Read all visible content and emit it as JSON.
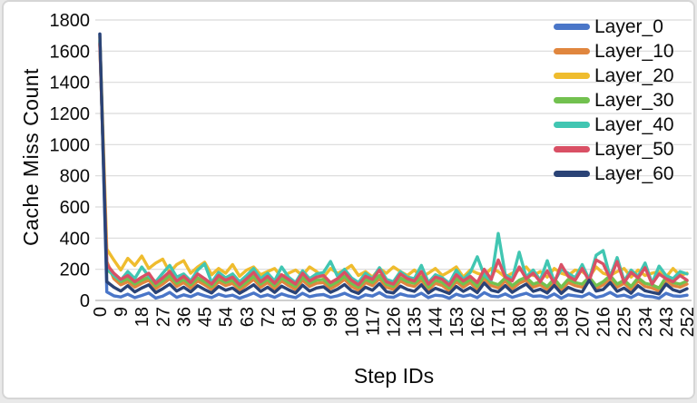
{
  "card": {
    "background": "#ffffff",
    "border_color": "#d6d6d6"
  },
  "colors": {
    "gridline": "#d9d9d9",
    "axis_line": "#bfbfbf",
    "tick_text": "#0a0a0a"
  },
  "chart_data": {
    "type": "line",
    "title": "",
    "xlabel": "Step IDs",
    "ylabel": "Cache Miss Count",
    "xlim": [
      0,
      252
    ],
    "ylim": [
      0,
      1800
    ],
    "grid": "horizontal-only",
    "legend_position": "top-right",
    "x_ticks": [
      0,
      9,
      18,
      27,
      36,
      45,
      54,
      63,
      72,
      81,
      90,
      99,
      108,
      117,
      126,
      135,
      144,
      153,
      162,
      171,
      180,
      189,
      198,
      207,
      216,
      225,
      234,
      243,
      252
    ],
    "y_ticks": [
      0,
      200,
      400,
      600,
      800,
      1000,
      1200,
      1400,
      1600,
      1800
    ],
    "sample_step": 3,
    "series": [
      {
        "name": "Layer_0",
        "color": "#4a76c8",
        "values": [
          1710,
          55,
          30,
          22,
          40,
          18,
          32,
          48,
          15,
          28,
          52,
          20,
          36,
          24,
          44,
          30,
          18,
          40,
          26,
          34,
          14,
          30,
          48,
          24,
          36,
          20,
          42,
          28,
          18,
          46,
          24,
          34,
          38,
          20,
          30,
          46,
          26,
          14,
          36,
          28,
          50,
          24,
          20,
          42,
          30,
          26,
          46,
          18,
          34,
          30,
          14,
          40,
          26,
          36,
          18,
          50,
          28,
          24,
          42,
          20,
          34,
          46,
          26,
          30,
          18,
          42,
          14,
          36,
          30,
          24,
          46,
          20,
          30,
          52,
          26,
          34,
          18,
          42,
          28,
          24,
          14,
          46,
          30,
          26,
          34
        ]
      },
      {
        "name": "Layer_10",
        "color": "#e0863e",
        "values": [
          1640,
          250,
          140,
          100,
          120,
          85,
          110,
          130,
          75,
          105,
          140,
          90,
          115,
          80,
          125,
          100,
          70,
          120,
          95,
          110,
          65,
          100,
          135,
          85,
          115,
          75,
          125,
          95,
          70,
          130,
          90,
          110,
          115,
          75,
          100,
          135,
          90,
          65,
          115,
          95,
          140,
          85,
          70,
          125,
          100,
          90,
          130,
          65,
          110,
          95,
          60,
          120,
          85,
          115,
          70,
          140,
          95,
          80,
          125,
          75,
          110,
          130,
          85,
          100,
          70,
          120,
          65,
          115,
          95,
          85,
          130,
          75,
          100,
          140,
          85,
          110,
          70,
          125,
          90,
          80,
          60,
          130,
          95,
          85,
          105
        ]
      },
      {
        "name": "Layer_20",
        "color": "#efbc2e",
        "values": [
          1690,
          330,
          260,
          195,
          270,
          225,
          285,
          205,
          240,
          265,
          180,
          230,
          255,
          175,
          215,
          245,
          165,
          205,
          175,
          230,
          155,
          195,
          215,
          165,
          185,
          205,
          150,
          175,
          195,
          160,
          215,
          185,
          150,
          205,
          175,
          195,
          225,
          160,
          185,
          150,
          205,
          175,
          215,
          185,
          160,
          195,
          150,
          175,
          205,
          160,
          185,
          215,
          150,
          195,
          175,
          160,
          205,
          185,
          150,
          175,
          195,
          215,
          160,
          185,
          150,
          205,
          175,
          160,
          195,
          185,
          150,
          215,
          175,
          160,
          185,
          205,
          150,
          195,
          160,
          175,
          185,
          150,
          205,
          160,
          175
        ]
      },
      {
        "name": "Layer_30",
        "color": "#72c14f",
        "values": [
          1660,
          200,
          160,
          120,
          140,
          105,
          130,
          150,
          95,
          125,
          160,
          110,
          135,
          100,
          145,
          120,
          90,
          140,
          115,
          130,
          85,
          120,
          155,
          105,
          135,
          95,
          145,
          115,
          90,
          150,
          110,
          130,
          135,
          95,
          120,
          155,
          110,
          85,
          135,
          115,
          160,
          105,
          90,
          145,
          120,
          110,
          150,
          85,
          130,
          115,
          80,
          140,
          105,
          135,
          90,
          160,
          115,
          100,
          145,
          95,
          130,
          150,
          105,
          120,
          90,
          140,
          85,
          135,
          115,
          105,
          150,
          95,
          120,
          160,
          105,
          130,
          90,
          145,
          110,
          100,
          80,
          150,
          115,
          105,
          125
        ]
      },
      {
        "name": "Layer_40",
        "color": "#41c6b2",
        "values": [
          1670,
          210,
          160,
          130,
          185,
          140,
          215,
          155,
          120,
          175,
          225,
          150,
          170,
          125,
          195,
          235,
          115,
          180,
          145,
          170,
          120,
          160,
          205,
          140,
          175,
          125,
          215,
          150,
          115,
          190,
          140,
          170,
          180,
          250,
          155,
          200,
          145,
          115,
          175,
          140,
          210,
          135,
          120,
          185,
          150,
          140,
          225,
          115,
          165,
          145,
          110,
          195,
          135,
          180,
          280,
          160,
          130,
          430,
          165,
          140,
          310,
          150,
          195,
          130,
          255,
          120,
          200,
          175,
          145,
          230,
          135,
          290,
          320,
          150,
          275,
          125,
          195,
          155,
          240,
          110,
          220,
          160,
          140,
          185,
          170
        ]
      },
      {
        "name": "Layer_50",
        "color": "#d95065",
        "values": [
          1650,
          230,
          175,
          135,
          160,
          120,
          150,
          175,
          110,
          145,
          185,
          125,
          155,
          115,
          170,
          140,
          105,
          160,
          130,
          150,
          100,
          140,
          180,
          120,
          155,
          110,
          165,
          135,
          105,
          175,
          125,
          150,
          160,
          115,
          140,
          180,
          130,
          100,
          155,
          135,
          195,
          120,
          105,
          170,
          140,
          125,
          185,
          105,
          150,
          135,
          98,
          165,
          125,
          155,
          115,
          200,
          135,
          260,
          150,
          125,
          215,
          140,
          175,
          120,
          190,
          110,
          230,
          155,
          130,
          205,
          125,
          260,
          235,
          140,
          250,
          115,
          180,
          145,
          210,
          105,
          170,
          140,
          120,
          160,
          130
        ]
      },
      {
        "name": "Layer_60",
        "color": "#2a4376",
        "values": [
          1710,
          120,
          85,
          60,
          95,
          55,
          80,
          100,
          50,
          75,
          105,
          60,
          85,
          55,
          95,
          70,
          48,
          90,
          65,
          80,
          46,
          72,
          100,
          58,
          85,
          52,
          92,
          68,
          48,
          98,
          60,
          80,
          88,
          52,
          72,
          102,
          62,
          45,
          85,
          65,
          108,
          56,
          48,
          92,
          70,
          58,
          100,
          48,
          78,
          62,
          44,
          90,
          58,
          82,
          50,
          112,
          66,
          55,
          95,
          52,
          80,
          105,
          58,
          72,
          48,
          96,
          45,
          84,
          65,
          55,
          130,
          60,
          70,
          115,
          58,
          80,
          46,
          95,
          62,
          52,
          42,
          105,
          68,
          55,
          75
        ]
      }
    ]
  }
}
